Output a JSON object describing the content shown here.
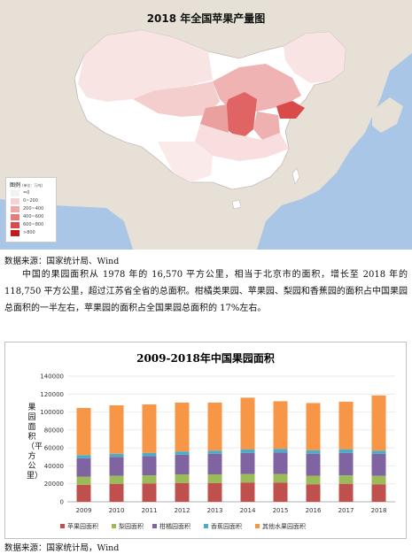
{
  "map": {
    "title": "2018 年全国苹果产量图",
    "legend_title": "图例",
    "legend_unit": "(单位：万吨)",
    "legend": [
      {
        "label": "=0",
        "color": "#f2f2f2"
      },
      {
        "label": "0~200",
        "color": "#f6d3d3"
      },
      {
        "label": "200~400",
        "color": "#efa8a8"
      },
      {
        "label": "400~600",
        "color": "#e57b7b"
      },
      {
        "label": "600~800",
        "color": "#d94a4a"
      },
      {
        "label": ">800",
        "color": "#c41a1a"
      }
    ],
    "land_color": "#e6e0d6",
    "sea_color": "#aac6e6"
  },
  "source1": "数据来源：国家统计局、Wind",
  "paragraph": "中国的果园面积从 1978 年的 16,570 平方公里，相当于北京市的面积，增长至 2018 年的 118,750 平方公里，超过江苏省全省的总面积。柑橘类果园、苹果园、梨园和香蕉园的面积占中国果园总面积的一半左右，苹果园的面积占全国果园总面积的 17%左右。",
  "chart_data": {
    "type": "bar",
    "stacked": true,
    "title": "2009-2018年中国果园面积",
    "ylabel": "果园面积（平方公里）",
    "categories": [
      "2009",
      "2010",
      "2011",
      "2012",
      "2013",
      "2014",
      "2015",
      "2016",
      "2017",
      "2018"
    ],
    "yticks": [
      "0",
      "20000",
      "40000",
      "60000",
      "80000",
      "100000",
      "120000",
      "140000"
    ],
    "ylim": [
      0,
      140000
    ],
    "series": [
      {
        "name": "苹果园面积",
        "color": "#c0504d",
        "values": [
          19000,
          20000,
          20500,
          21000,
          21000,
          21500,
          21500,
          19500,
          20000,
          19500
        ]
      },
      {
        "name": "梨园面积",
        "color": "#9bbb59",
        "values": [
          9000,
          9000,
          9000,
          9500,
          9500,
          9500,
          9500,
          9500,
          9500,
          9500
        ]
      },
      {
        "name": "柑橘园面积",
        "color": "#8064a2",
        "values": [
          20500,
          21000,
          21500,
          22000,
          23000,
          23500,
          24000,
          24500,
          25000,
          24500
        ]
      },
      {
        "name": "香蕉园面积",
        "color": "#4bacc6",
        "values": [
          3500,
          3500,
          3500,
          3500,
          3500,
          4000,
          4000,
          4000,
          4000,
          3500
        ]
      },
      {
        "name": "其他水果园面积",
        "color": "#f79646",
        "values": [
          52500,
          54000,
          54000,
          54500,
          53500,
          57500,
          53000,
          52500,
          53000,
          61500
        ]
      }
    ],
    "legend_position": "bottom"
  },
  "source2": "数据来源：国家统计局，Wind"
}
